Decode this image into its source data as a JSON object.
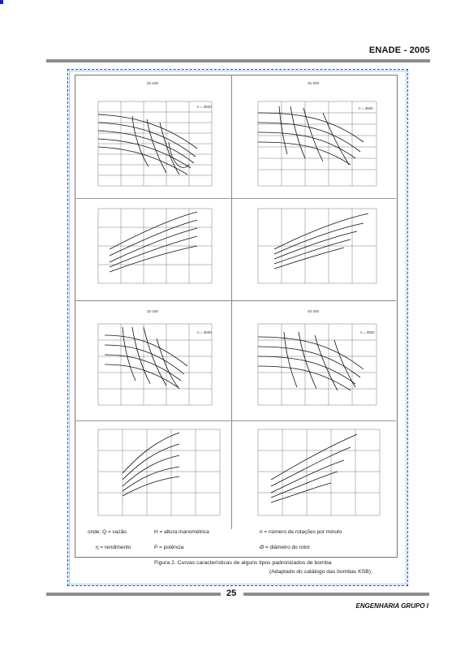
{
  "header": {
    "title": "ENADE - 2005"
  },
  "figure": {
    "panels": [
      {
        "title": "32-160",
        "speed": "n = 3500"
      },
      {
        "title": "32-200",
        "speed": "n = 3500"
      },
      {
        "title": "32-160",
        "speed": "n = 3500"
      },
      {
        "title": "40-200",
        "speed": "n = 3500"
      }
    ],
    "legend": {
      "line1": [
        "onde: Q = vazão",
        "H = altura manométrica",
        "n = número de rotações por minuto"
      ],
      "line2": [
        "η = rendimento",
        "P = potência",
        "Ø = diâmetro do rotor"
      ]
    },
    "caption_line1": "Figura 2. Curvas características de alguns tipos padronizados de bomba",
    "caption_line2": "(Adaptado do catálogo das bombas KSB)."
  },
  "footer": {
    "page_number": "25",
    "title": "ENGENHARIA GRUPO I"
  }
}
